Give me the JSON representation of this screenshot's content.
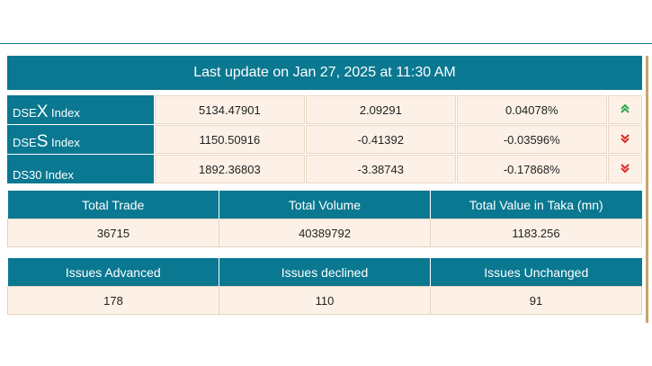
{
  "header": {
    "last_update": "Last update on Jan 27, 2025 at 11:30 AM"
  },
  "indices": [
    {
      "prefix": "DSE",
      "letter": "X",
      "suffix": " Index",
      "value": "5134.47901",
      "change": "2.09291",
      "percent": "0.04078%",
      "trend": "up",
      "trend_icon": "double-chevron-up-icon"
    },
    {
      "prefix": "DSE",
      "letter": "S",
      "suffix": " Index",
      "value": "1150.50916",
      "change": "-0.41392",
      "percent": "-0.03596%",
      "trend": "down",
      "trend_icon": "double-chevron-down-icon"
    },
    {
      "prefix": "DS30",
      "letter": "",
      "suffix": " Index",
      "value": "1892.36803",
      "change": "-3.38743",
      "percent": "-0.17868%",
      "trend": "down",
      "trend_icon": "double-chevron-down-icon"
    }
  ],
  "trade_stats": {
    "headers": [
      "Total Trade",
      "Total Volume",
      "Total Value in Taka (mn)"
    ],
    "values": [
      "36715",
      "40389792",
      "1183.256"
    ]
  },
  "issues_stats": {
    "headers": [
      "Issues Advanced",
      "Issues declined",
      "Issues Unchanged"
    ],
    "values": [
      "178",
      "110",
      "91"
    ]
  },
  "colors": {
    "header_bg": "#0a7891",
    "cell_bg": "#fdf1e7",
    "up": "#2aa84a",
    "down": "#e02828"
  }
}
